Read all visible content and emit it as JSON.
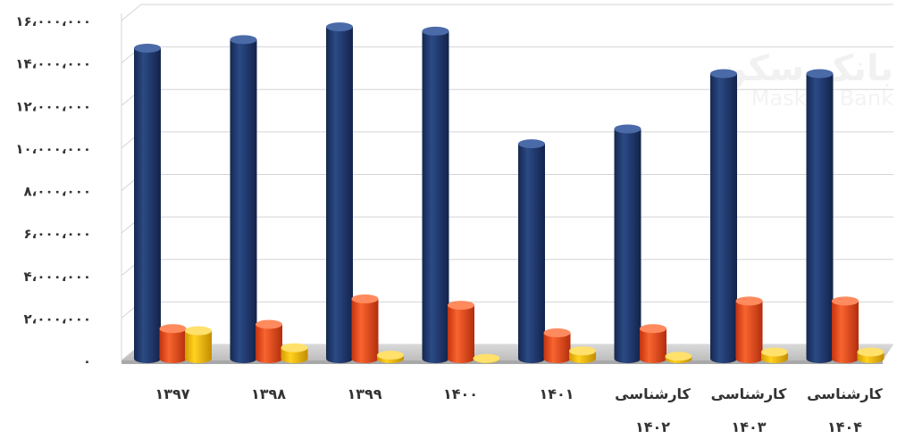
{
  "chart_data": {
    "type": "bar",
    "title": "",
    "xlabel": "",
    "ylabel": "",
    "ylim": [
      0,
      16000000
    ],
    "yticks": [
      {
        "value": 0,
        "label": "۰"
      },
      {
        "value": 2000000,
        "label": "۲،۰۰۰،۰۰۰"
      },
      {
        "value": 4000000,
        "label": "۴،۰۰۰،۰۰۰"
      },
      {
        "value": 6000000,
        "label": "۶،۰۰۰،۰۰۰"
      },
      {
        "value": 8000000,
        "label": "۸،۰۰۰،۰۰۰"
      },
      {
        "value": 10000000,
        "label": "۱۰،۰۰۰،۰۰۰"
      },
      {
        "value": 12000000,
        "label": "۱۲،۰۰۰،۰۰۰"
      },
      {
        "value": 14000000,
        "label": "۱۴،۰۰۰،۰۰۰"
      },
      {
        "value": 16000000,
        "label": "۱۶،۰۰۰،۰۰۰"
      }
    ],
    "grid": true,
    "legend": "none",
    "categories": [
      [
        "۱۳۹۷"
      ],
      [
        "۱۳۹۸"
      ],
      [
        "۱۳۹۹"
      ],
      [
        "۱۴۰۰"
      ],
      [
        "۱۴۰۱"
      ],
      [
        "کارشناسی",
        "۱۴۰۲"
      ],
      [
        "کارشناسی",
        "۱۴۰۳"
      ],
      [
        "کارشناسی",
        "۱۴۰۴"
      ]
    ],
    "series": [
      {
        "color": "#1d3566",
        "values": [
          14700000,
          15100000,
          15700000,
          15500000,
          10200000,
          10900000,
          13500000,
          13500000
        ]
      },
      {
        "color": "#e8451c",
        "values": [
          1500000,
          1700000,
          2900000,
          2600000,
          1300000,
          1500000,
          2800000,
          2800000
        ]
      },
      {
        "color": "#f2b90c",
        "values": [
          1400000,
          600000,
          250000,
          100000,
          450000,
          200000,
          400000,
          400000
        ]
      }
    ]
  },
  "watermark": {
    "text_fa": "بانک سکن",
    "text_en": "Maskan Bank"
  }
}
